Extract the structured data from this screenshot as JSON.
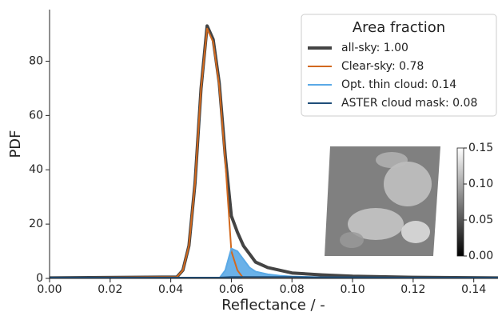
{
  "chart_data": {
    "type": "line",
    "x_label": "Reflectance / -",
    "y_label": "PDF",
    "x": [
      0,
      0.042,
      0.044,
      0.046,
      0.048,
      0.05,
      0.052,
      0.054,
      0.056,
      0.058,
      0.06,
      0.062,
      0.064,
      0.066,
      0.068,
      0.072,
      0.076,
      0.08,
      0.09,
      0.1,
      0.12,
      0.148
    ],
    "series": [
      {
        "name": "all-sky: 1.00",
        "color": "#444444",
        "width": 4,
        "filled": false,
        "values": [
          0.2,
          0.5,
          3,
          12,
          35,
          70,
          93,
          88,
          72,
          45,
          23,
          17,
          12,
          9,
          6,
          4,
          3,
          2,
          1.3,
          0.8,
          0.4,
          0.2
        ]
      },
      {
        "name": "Clear-sky: 0.78",
        "color": "#d2691e",
        "width": 2,
        "filled": false,
        "values": [
          0.2,
          0.5,
          3,
          12,
          35,
          70,
          92,
          87,
          71,
          43,
          10,
          3,
          0,
          0,
          0,
          0,
          0,
          0,
          0,
          0,
          0,
          0
        ]
      },
      {
        "name": "Opt. thin cloud: 0.14",
        "color": "#5aa9e6",
        "width": 2,
        "filled": true,
        "values": [
          0,
          0,
          0,
          0,
          0,
          0,
          0,
          0,
          0,
          3,
          11,
          10,
          7,
          4,
          2.5,
          1.5,
          1,
          0.7,
          0.4,
          0.3,
          0.2,
          0.1
        ]
      },
      {
        "name": "ASTER cloud mask: 0.08",
        "color": "#1f4e79",
        "width": 2,
        "filled": true,
        "values": [
          0.3,
          0.3,
          0.3,
          0.3,
          0.3,
          0.3,
          0.3,
          0.3,
          0.3,
          0.4,
          0.5,
          0.5,
          0.5,
          0.5,
          0.5,
          0.5,
          0.5,
          0.5,
          0.4,
          0.4,
          0.3,
          0.3
        ]
      }
    ],
    "legend_title": "Area fraction",
    "legend": "upper right",
    "xlim": [
      0,
      0.148
    ],
    "ylim": [
      0,
      99
    ],
    "xticks": [
      {
        "value": 0,
        "label": "0.00"
      },
      {
        "value": 0.02,
        "label": "0.02"
      },
      {
        "value": 0.04,
        "label": "0.04"
      },
      {
        "value": 0.06,
        "label": "0.06"
      },
      {
        "value": 0.08,
        "label": "0.08"
      },
      {
        "value": 0.1,
        "label": "0.10"
      },
      {
        "value": 0.12,
        "label": "0.12"
      },
      {
        "value": 0.14,
        "label": "0.14"
      }
    ],
    "yticks": [
      0,
      20,
      40,
      60,
      80
    ],
    "colorbar": {
      "lim": [
        0,
        0.15
      ],
      "ticks": [
        {
          "value": 0,
          "label": "0.00"
        },
        {
          "value": 0.05,
          "label": "0.05"
        },
        {
          "value": 0.1,
          "label": "0.10"
        },
        {
          "value": 0.15,
          "label": "0.15"
        }
      ]
    }
  }
}
